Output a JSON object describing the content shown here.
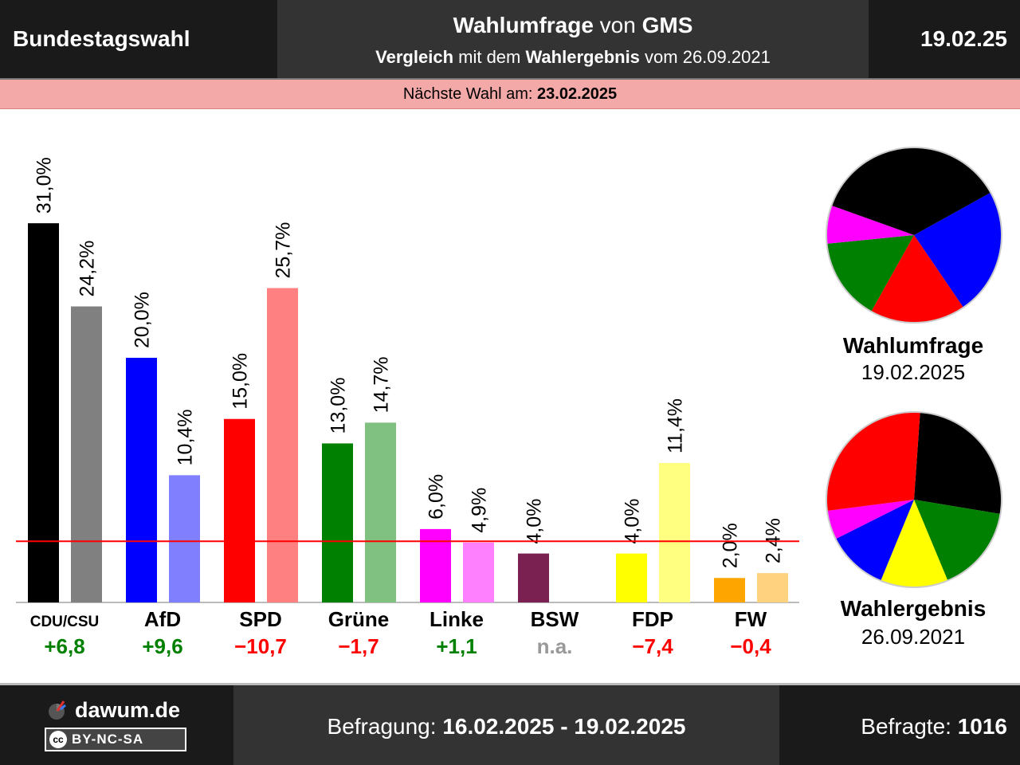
{
  "header": {
    "left": "Bundestagswahl",
    "title_bold_1": "Wahlumfrage",
    "title_mid": " von ",
    "title_bold_2": "GMS",
    "sub_bold_1": "Vergleich",
    "sub_mid": " mit dem ",
    "sub_bold_2": "Wahlergebnis",
    "sub_end": " vom 26.09.2021",
    "date": "19.02.25"
  },
  "next_election": {
    "label": "Nächste Wahl am: ",
    "date": "23.02.2025"
  },
  "pies": [
    {
      "title": "Wahlumfrage",
      "date": "19.02.2025"
    },
    {
      "title": "Wahlergebnis",
      "date": "26.09.2021"
    }
  ],
  "footer": {
    "logo": "dawum.de",
    "license": "BY-NC-SA",
    "survey_label": "Befragung: ",
    "survey_dates": "16.02.2025 - 19.02.2025",
    "respondents_label": "Befragte: ",
    "respondents": "1016"
  },
  "colors": {
    "header_dark": "#1a1a1a",
    "header_mid": "#333333",
    "banner": "#f4a9a9",
    "threshold": "#ff0000",
    "positive": "#008000",
    "negative": "#ff0000",
    "na": "#999999"
  },
  "chart_data": {
    "type": "bar",
    "categories": [
      "CDU/CSU",
      "AfD",
      "SPD",
      "Grüne",
      "Linke",
      "BSW",
      "FDP",
      "FW"
    ],
    "series": [
      {
        "name": "Wahlumfrage 19.02.2025",
        "values": [
          31.0,
          20.0,
          15.0,
          13.0,
          6.0,
          4.0,
          4.0,
          2.0
        ],
        "labels": [
          "31,0%",
          "20,0%",
          "15,0%",
          "13,0%",
          "6,0%",
          "4,0%",
          "4,0%",
          "2,0%"
        ],
        "colors": [
          "#000000",
          "#0000ff",
          "#ff0000",
          "#008000",
          "#ff00ff",
          "#7a2151",
          "#ffff00",
          "#ffa500"
        ]
      },
      {
        "name": "Wahlergebnis 26.09.2021",
        "values": [
          24.2,
          10.4,
          25.7,
          14.7,
          4.9,
          null,
          11.4,
          2.4
        ],
        "labels": [
          "24,2%",
          "10,4%",
          "25,7%",
          "14,7%",
          "4,9%",
          "",
          "11,4%",
          "2,4%"
        ],
        "colors": [
          "#808080",
          "#8080ff",
          "#ff8080",
          "#80c080",
          "#ff80ff",
          "#bd90a8",
          "#ffff80",
          "#ffd280"
        ]
      }
    ],
    "differences": [
      "+6,8",
      "+9,6",
      "−10,7",
      "−1,7",
      "+1,1",
      "n.a.",
      "−7,4",
      "−0,4"
    ],
    "difference_signs": [
      "pos",
      "pos",
      "neg",
      "neg",
      "pos",
      "na",
      "neg",
      "neg"
    ],
    "threshold": 5,
    "ylim": [
      0,
      31.0
    ],
    "grid": false,
    "pie_order": {
      "poll": [
        "AfD",
        "SPD",
        "Grüne",
        "Linke",
        "CDU/CSU"
      ],
      "result": [
        "CDU/CSU",
        "Grüne",
        "FDP",
        "AfD",
        "Linke",
        "SPD"
      ]
    }
  }
}
